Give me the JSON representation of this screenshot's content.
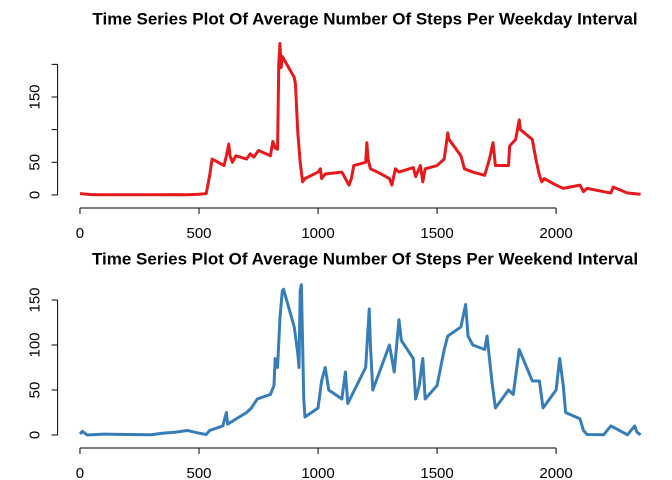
{
  "chart_data": [
    {
      "type": "line",
      "title": "Time Series Plot Of Average Number Of Steps Per Weekday Interval",
      "color": "#e41a1c",
      "x": [
        0,
        50,
        100,
        200,
        300,
        400,
        450,
        500,
        530,
        545,
        555,
        605,
        615,
        625,
        630,
        640,
        655,
        700,
        715,
        730,
        750,
        800,
        810,
        820,
        830,
        835,
        840,
        845,
        850,
        900,
        905,
        915,
        925,
        935,
        945,
        1000,
        1010,
        1015,
        1030,
        1100,
        1130,
        1140,
        1150,
        1200,
        1205,
        1210,
        1220,
        1250,
        1300,
        1310,
        1325,
        1340,
        1400,
        1410,
        1430,
        1440,
        1450,
        1500,
        1530,
        1545,
        1550,
        1600,
        1615,
        1650,
        1700,
        1720,
        1735,
        1745,
        1800,
        1805,
        1830,
        1845,
        1850,
        1900,
        1915,
        1930,
        1940,
        1950,
        2000,
        2030,
        2100,
        2115,
        2130,
        2200,
        2230,
        2240,
        2300,
        2355
      ],
      "values": [
        2,
        0.5,
        0.3,
        0.2,
        0.3,
        0.5,
        0.2,
        1,
        2,
        30,
        55,
        45,
        60,
        78,
        60,
        50,
        60,
        55,
        63,
        58,
        68,
        60,
        82,
        72,
        70,
        200,
        232,
        195,
        212,
        180,
        170,
        95,
        50,
        20,
        25,
        35,
        40,
        25,
        32,
        35,
        15,
        25,
        45,
        50,
        80,
        55,
        40,
        35,
        25,
        15,
        40,
        35,
        42,
        28,
        45,
        20,
        40,
        45,
        55,
        95,
        85,
        60,
        40,
        35,
        30,
        55,
        80,
        45,
        45,
        75,
        85,
        115,
        100,
        85,
        55,
        30,
        20,
        25,
        15,
        10,
        15,
        5,
        10,
        5,
        3,
        12,
        3,
        1
      ],
      "xlim": [
        -94,
        2449
      ],
      "xticks": [
        0,
        500,
        1000,
        1500,
        2000
      ],
      "ylim": [
        -9.3,
        241
      ],
      "yticks": [
        0,
        50,
        {
          "value": 100,
          "label": null
        },
        150,
        {
          "value": 200,
          "label": null
        }
      ]
    },
    {
      "type": "line",
      "title": "Time Series Plot Of Average Number Of Steps Per Weekend Interval",
      "color": "#377eb8",
      "x": [
        0,
        10,
        30,
        100,
        200,
        300,
        350,
        400,
        450,
        500,
        530,
        545,
        600,
        615,
        620,
        700,
        720,
        745,
        800,
        815,
        820,
        830,
        840,
        850,
        855,
        900,
        915,
        920,
        925,
        930,
        940,
        945,
        1000,
        1015,
        1030,
        1045,
        1100,
        1115,
        1125,
        1200,
        1215,
        1220,
        1230,
        1300,
        1320,
        1340,
        1350,
        1400,
        1410,
        1425,
        1440,
        1450,
        1500,
        1530,
        1545,
        1600,
        1620,
        1630,
        1650,
        1700,
        1710,
        1730,
        1745,
        1800,
        1820,
        1845,
        1900,
        1930,
        1945,
        2000,
        2015,
        2030,
        2040,
        2100,
        2115,
        2130,
        2200,
        2230,
        2300,
        2330,
        2340,
        2355
      ],
      "values": [
        1,
        4,
        0,
        1,
        0.5,
        0.3,
        2,
        3,
        5,
        2,
        0.5,
        5,
        10,
        25,
        12,
        25,
        30,
        40,
        45,
        55,
        85,
        75,
        130,
        160,
        162,
        120,
        90,
        75,
        160,
        167,
        40,
        20,
        30,
        60,
        75,
        50,
        40,
        70,
        35,
        75,
        140,
        100,
        50,
        100,
        70,
        128,
        105,
        85,
        40,
        55,
        85,
        40,
        55,
        95,
        110,
        120,
        145,
        110,
        100,
        95,
        110,
        60,
        30,
        50,
        45,
        95,
        60,
        60,
        30,
        50,
        85,
        55,
        25,
        18,
        5,
        0.5,
        0.3,
        10,
        0.2,
        10,
        3,
        0.1
      ],
      "xlim": [
        -94,
        2449
      ],
      "xticks": [
        0,
        500,
        1000,
        1500,
        2000
      ],
      "ylim": [
        -6.7,
        174
      ],
      "yticks": [
        0,
        50,
        100,
        150
      ]
    }
  ]
}
